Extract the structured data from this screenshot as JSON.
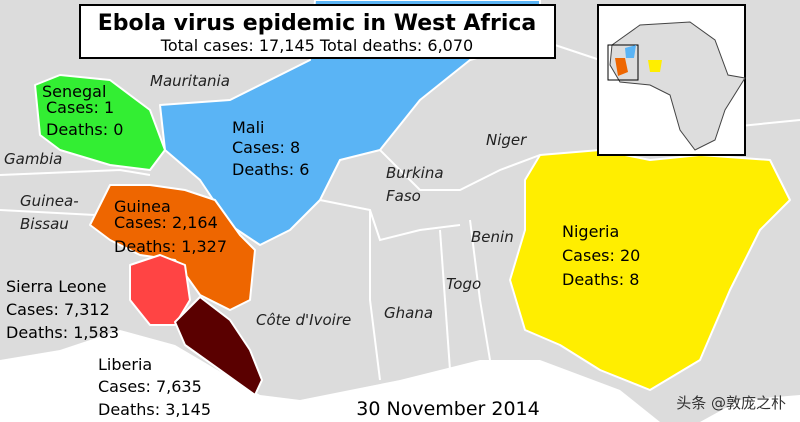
{
  "title": "Ebola virus epidemic in West Africa",
  "subtitle": "Total cases: 17,145 Total deaths: 6,070",
  "affected": [
    {
      "name": "Senegal",
      "cases": "Cases: 1",
      "deaths": "Deaths: 0"
    },
    {
      "name": "Mali",
      "cases": "Cases: 8",
      "deaths": "Deaths: 6"
    },
    {
      "name": "Guinea",
      "cases": "Cases: 2,164",
      "deaths": "Deaths: 1,327"
    },
    {
      "name": "Sierra Leone",
      "cases": "Cases: 7,312",
      "deaths": "Deaths: 1,583"
    },
    {
      "name": "Liberia",
      "cases": "Cases: 7,635",
      "deaths": "Deaths: 3,145"
    },
    {
      "name": "Nigeria",
      "cases": "Cases: 20",
      "deaths": "Deaths: 8"
    }
  ],
  "other_countries": [
    "Mauritania",
    "Gambia",
    "Guinea-",
    "Bissau",
    "Niger",
    "Burkina",
    "Faso",
    "Benin",
    "Togo",
    "Côte d'Ivoire",
    "Ghana"
  ],
  "date": "30 November 2014",
  "watermark": "头条 @敦庞之朴"
}
